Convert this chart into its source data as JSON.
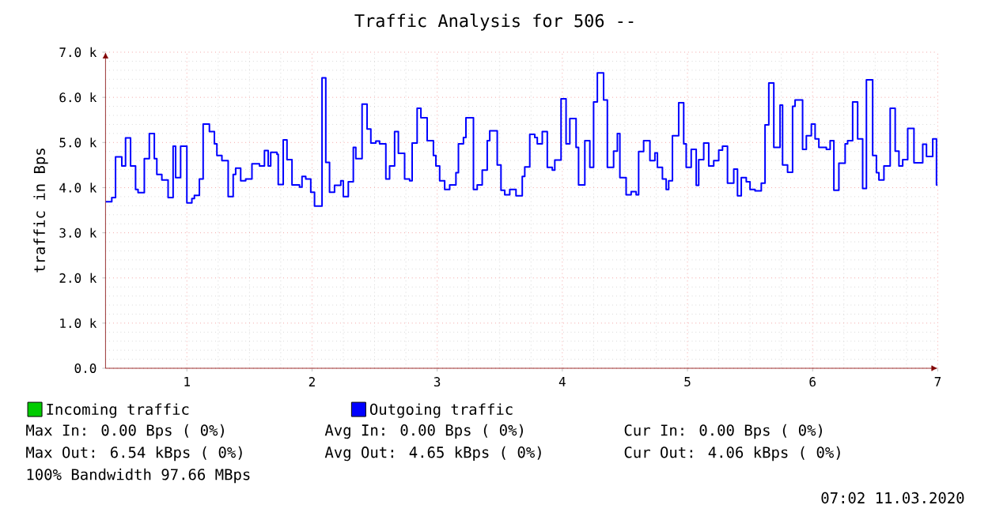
{
  "chart_data": {
    "type": "step",
    "title": "Traffic Analysis for 506 --",
    "ylabel": "traffic in Bps",
    "xlim": [
      0.35,
      7
    ],
    "xticks": [
      1,
      2,
      3,
      4,
      5,
      6,
      7
    ],
    "ylim": [
      0,
      7000
    ],
    "yticks": [
      {
        "value": 0,
        "label": "0.0"
      },
      {
        "value": 1000,
        "label": "1.0 k"
      },
      {
        "value": 2000,
        "label": "2.0 k"
      },
      {
        "value": 3000,
        "label": "3.0 k"
      },
      {
        "value": 4000,
        "label": "4.0 k"
      },
      {
        "value": 5000,
        "label": "5.0 k"
      },
      {
        "value": 6000,
        "label": "6.0 k"
      },
      {
        "value": 7000,
        "label": "7.0 k"
      }
    ],
    "grid": true,
    "legend": "bottom left",
    "series": [
      {
        "name": "Incoming traffic",
        "color": "#00cc00"
      },
      {
        "name": "Outgoing traffic",
        "color": "#0000ff",
        "x": [
          0.35,
          0.4,
          0.43,
          0.48,
          0.51,
          0.55,
          0.59,
          0.61,
          0.66,
          0.7,
          0.74,
          0.76,
          0.8,
          0.85,
          0.89,
          0.91,
          0.95,
          1.0,
          1.04,
          1.06,
          1.1,
          1.13,
          1.18,
          1.22,
          1.24,
          1.28,
          1.33,
          1.37,
          1.39,
          1.43,
          1.47,
          1.52,
          1.58,
          1.62,
          1.65,
          1.67,
          1.72,
          1.73,
          1.77,
          1.8,
          1.84,
          1.9,
          1.92,
          1.95,
          1.99,
          2.02,
          2.08,
          2.11,
          2.14,
          2.18,
          2.23,
          2.25,
          2.29,
          2.33,
          2.35,
          2.4,
          2.44,
          2.47,
          2.51,
          2.54,
          2.59,
          2.62,
          2.66,
          2.69,
          2.74,
          2.78,
          2.8,
          2.84,
          2.87,
          2.92,
          2.97,
          2.99,
          3.02,
          3.06,
          3.1,
          3.15,
          3.17,
          3.21,
          3.23,
          3.29,
          3.32,
          3.36,
          3.4,
          3.42,
          3.48,
          3.51,
          3.54,
          3.58,
          3.63,
          3.68,
          3.7,
          3.74,
          3.78,
          3.8,
          3.84,
          3.88,
          3.92,
          3.94,
          3.99,
          4.03,
          4.06,
          4.11,
          4.13,
          4.18,
          4.22,
          4.25,
          4.28,
          4.33,
          4.36,
          4.41,
          4.44,
          4.46,
          4.51,
          4.55,
          4.59,
          4.61,
          4.65,
          4.7,
          4.74,
          4.76,
          4.8,
          4.83,
          4.85,
          4.88,
          4.93,
          4.97,
          4.99,
          5.03,
          5.07,
          5.09,
          5.13,
          5.17,
          5.21,
          5.25,
          5.28,
          5.32,
          5.37,
          5.4,
          5.43,
          5.47,
          5.5,
          5.54,
          5.59,
          5.62,
          5.65,
          5.69,
          5.74,
          5.76,
          5.8,
          5.84,
          5.86,
          5.92,
          5.95,
          5.99,
          6.02,
          6.05,
          6.11,
          6.14,
          6.17,
          6.21,
          6.26,
          6.28,
          6.32,
          6.36,
          6.4,
          6.43,
          6.48,
          6.51,
          6.53,
          6.57,
          6.62,
          6.66,
          6.69,
          6.72,
          6.76,
          6.81,
          6.88,
          6.91,
          6.96,
          6.99,
          7.0
        ],
        "values": [
          3690,
          3780,
          4680,
          4480,
          5100,
          4480,
          3960,
          3890,
          4640,
          5200,
          4640,
          4290,
          4170,
          3780,
          4920,
          4220,
          4920,
          3660,
          3760,
          3830,
          4190,
          5410,
          5240,
          4970,
          4710,
          4600,
          3800,
          4290,
          4430,
          4150,
          4190,
          4530,
          4480,
          4820,
          4480,
          4780,
          4740,
          4070,
          5060,
          4620,
          4060,
          4010,
          4250,
          4190,
          3900,
          3590,
          6430,
          4560,
          3900,
          4050,
          4150,
          3800,
          4130,
          4890,
          4640,
          5850,
          5300,
          4990,
          5030,
          4970,
          4190,
          4480,
          5240,
          4760,
          4190,
          4150,
          4990,
          5760,
          5550,
          5040,
          4710,
          4480,
          4150,
          3960,
          4060,
          4330,
          4970,
          5110,
          5550,
          3960,
          4060,
          4390,
          5040,
          5260,
          4500,
          3940,
          3840,
          3960,
          3820,
          4250,
          4460,
          5180,
          5110,
          4970,
          5240,
          4450,
          4390,
          4610,
          5970,
          4970,
          5530,
          4890,
          4060,
          5040,
          4450,
          5900,
          6540,
          5940,
          4450,
          4810,
          5200,
          4220,
          3840,
          3910,
          3840,
          4800,
          5040,
          4600,
          4770,
          4450,
          4190,
          3960,
          4150,
          5150,
          5880,
          4970,
          4450,
          4850,
          4050,
          4620,
          4990,
          4480,
          4600,
          4830,
          4920,
          4100,
          4410,
          3820,
          4220,
          4130,
          3960,
          3930,
          4100,
          5390,
          6320,
          4890,
          5830,
          4500,
          4340,
          5800,
          5940,
          4850,
          5150,
          5410,
          5080,
          4890,
          4850,
          5040,
          3940,
          4540,
          4970,
          5040,
          5900,
          5080,
          3980,
          6390,
          4710,
          4330,
          4170,
          4480,
          5760,
          4810,
          4480,
          4620,
          5310,
          4550,
          4960,
          4690,
          5080,
          4060,
          4060
        ]
      }
    ],
    "annotations": [
      "Max In: 0.00 Bps ( 0%)",
      "Avg In: 0.00 Bps ( 0%)",
      "Cur In: 0.00 Bps ( 0%)",
      "Max Out: 6.54 kBps ( 0%)",
      "Avg Out: 4.65 kBps ( 0%)",
      "Cur Out: 4.06 kBps ( 0%)",
      "100% Bandwidth 97.66 MBps",
      "07:02 11.03.2020"
    ]
  }
}
